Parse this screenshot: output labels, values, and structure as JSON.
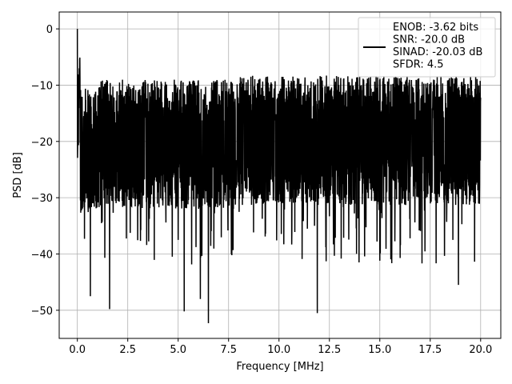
{
  "chart_data": {
    "type": "line",
    "xlabel": "Frequency [MHz]",
    "ylabel": "PSD [dB]",
    "xlim": [
      -0.9,
      21.0
    ],
    "ylim": [
      -55,
      3
    ],
    "xticks": [
      0.0,
      2.5,
      5.0,
      7.5,
      10.0,
      12.5,
      15.0,
      17.5,
      20.0
    ],
    "xtick_labels": [
      "0.0",
      "2.5",
      "5.0",
      "7.5",
      "10.0",
      "12.5",
      "15.0",
      "17.5",
      "20.0"
    ],
    "yticks": [
      0,
      -10,
      -20,
      -30,
      -40,
      -50
    ],
    "ytick_labels": [
      "0",
      "−10",
      "−20",
      "−30",
      "−40",
      "−50"
    ],
    "grid": true,
    "legend_position": "top-right",
    "line_color": "#000000",
    "legend_lines": [
      "ENOB: -3.62 bits",
      "SNR: -20.0 dB",
      "SINAD: -20.03 dB",
      "SFDR: 4.5"
    ],
    "series": [
      {
        "x_range": [
          0.0,
          20.0
        ],
        "peak": {
          "x": 0.0,
          "y": 0.0
        },
        "noise_mean": -20,
        "noise_upper_envelope": -10,
        "noise_lower_envelope": -30,
        "deep_dips": [
          {
            "x": 0.65,
            "y": -47.5
          },
          {
            "x": 1.6,
            "y": -49.8
          },
          {
            "x": 5.3,
            "y": -50.2
          },
          {
            "x": 6.1,
            "y": -48.0
          },
          {
            "x": 6.5,
            "y": -52.3
          },
          {
            "x": 11.9,
            "y": -50.5
          },
          {
            "x": 18.9,
            "y": -45.5
          }
        ]
      }
    ]
  }
}
